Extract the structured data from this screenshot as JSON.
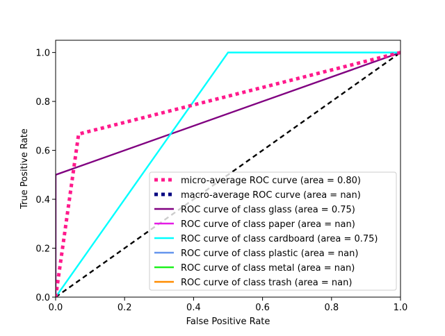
{
  "chart_data": {
    "type": "line",
    "title": "",
    "xlabel": "False Positive Rate",
    "ylabel": "True Positive Rate",
    "xlim": [
      0.0,
      1.0
    ],
    "ylim": [
      0.0,
      1.05
    ],
    "xticks": [
      0.0,
      0.2,
      0.4,
      0.6,
      0.8,
      1.0
    ],
    "yticks": [
      0.0,
      0.2,
      0.4,
      0.6,
      0.8,
      1.0
    ],
    "xtick_labels": [
      "0.0",
      "0.2",
      "0.4",
      "0.6",
      "0.8",
      "1.0"
    ],
    "ytick_labels": [
      "0.0",
      "0.2",
      "0.4",
      "0.6",
      "0.8",
      "1.0"
    ],
    "grid": false,
    "legend_position": "lower-right",
    "series": [
      {
        "name": "micro-average ROC curve (area = 0.80)",
        "color": "#ff1a8c",
        "style": "dotted",
        "x": [
          0.0,
          0.0667,
          1.0
        ],
        "y": [
          0.0,
          0.6667,
          1.0
        ]
      },
      {
        "name": "macro-average ROC curve (area = nan)",
        "color": "#000080",
        "style": "dotted",
        "x": [],
        "y": []
      },
      {
        "name": "ROC curve of class glass (area = 0.75)",
        "color": "#800080",
        "style": "solid",
        "x": [
          0.0,
          0.0,
          1.0
        ],
        "y": [
          0.0,
          0.5,
          1.0
        ]
      },
      {
        "name": "ROC curve of class paper (area = nan)",
        "color": "#e51be5",
        "style": "solid",
        "x": [],
        "y": []
      },
      {
        "name": "ROC curve of class cardboard (area = 0.75)",
        "color": "#00ffff",
        "style": "solid",
        "x": [
          0.0,
          0.5,
          1.0
        ],
        "y": [
          0.0,
          1.0,
          1.0
        ]
      },
      {
        "name": "ROC curve of class plastic (area = nan)",
        "color": "#6495ed",
        "style": "solid",
        "x": [],
        "y": []
      },
      {
        "name": "ROC curve of class metal (area = nan)",
        "color": "#1cf11c",
        "style": "solid",
        "x": [],
        "y": []
      },
      {
        "name": "ROC curve of class trash (area = nan)",
        "color": "#ff8c00",
        "style": "solid",
        "x": [],
        "y": []
      }
    ],
    "reference_line": {
      "color": "#000000",
      "style": "dashed",
      "x": [
        0.0,
        1.0
      ],
      "y": [
        0.0,
        1.0
      ]
    }
  }
}
